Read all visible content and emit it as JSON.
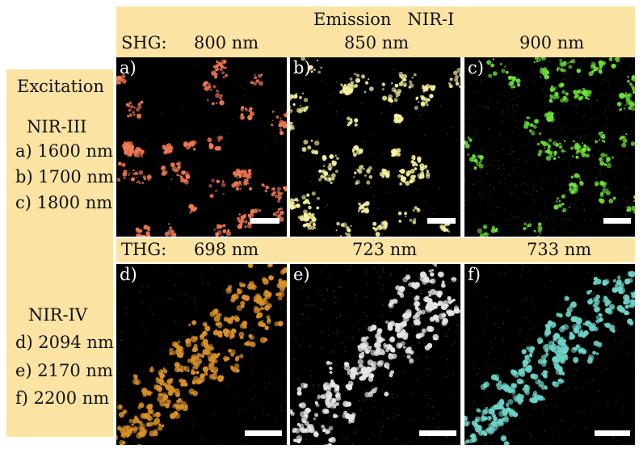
{
  "emission_header": "Emission   NIR-I",
  "shg_row": {
    "label": "SHG:",
    "wavelengths": [
      "800 nm",
      "850 nm",
      "900 nm"
    ]
  },
  "thg_row": {
    "label": "THG:",
    "wavelengths": [
      "698 nm",
      "723 nm",
      "733 nm"
    ]
  },
  "excitation": {
    "title": "Excitation",
    "group1": {
      "title": "NIR-III",
      "items": [
        "a) 1600 nm",
        "b) 1700 nm",
        "c) 1800 nm"
      ]
    },
    "group2": {
      "title": "NIR-IV",
      "items": [
        "d) 2094 nm",
        "e) 2170 nm",
        "f) 2200 nm"
      ]
    }
  },
  "panels": [
    {
      "label": "a)",
      "color": "#f27a55"
    },
    {
      "label": "b)",
      "color": "#f6f2a0"
    },
    {
      "label": "c)",
      "color": "#6ee03a"
    },
    {
      "label": "d)",
      "color": "#d9912b"
    },
    {
      "label": "e)",
      "color": "#e6e6e6"
    },
    {
      "label": "f)",
      "color": "#6fd3c7"
    }
  ],
  "colors": {
    "header_bg": "#fbe3a4",
    "image_bg": "#000000",
    "scalebar": "#ffffff"
  }
}
